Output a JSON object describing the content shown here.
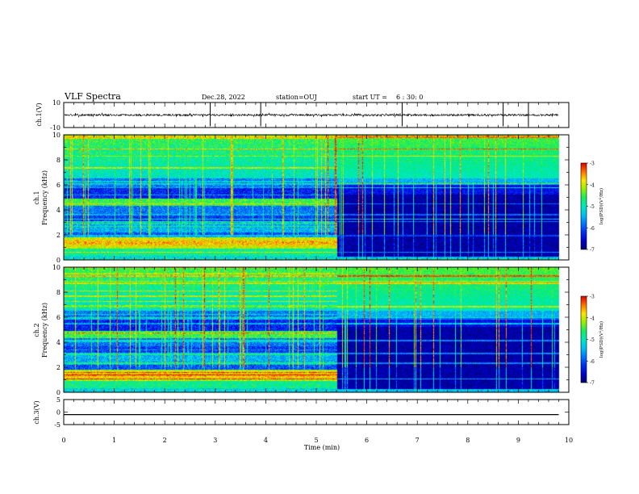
{
  "header": {
    "title": "VLF Spectra",
    "date": "Dec.28, 2022",
    "station": "station=OUJ",
    "start_label": "start  UT =",
    "start_time": "6 : 30: 0"
  },
  "chart_data": [
    {
      "type": "line",
      "panel": "ch1-waveform",
      "ylabel": "ch.1(V)",
      "ylim": [
        -10,
        10
      ],
      "yticks": [
        "10",
        "-10"
      ],
      "series": [
        {
          "values_description_free": true,
          "baseline": 0,
          "noise_amplitude": 1,
          "impulses_at_min": [
            2.9,
            3.9,
            6.7,
            8.7,
            9.2
          ]
        }
      ]
    },
    {
      "type": "heatmap",
      "panel": "ch1-spectrogram",
      "ylabel": "ch.1\nFrequency (kHz)",
      "ylabel_line1": "ch.1",
      "ylabel_line2": "Frequency (kHz)",
      "ylim": [
        0,
        10
      ],
      "yticks": [
        "0",
        "2",
        "4",
        "6",
        "8",
        "10"
      ],
      "xlim": [
        0,
        10
      ],
      "regime_change_min": 5.4,
      "colorbar": {
        "label": "log(PSD)(V²/Hz)",
        "range": [
          -7,
          -3
        ],
        "ticks": [
          "-3",
          "-4",
          "-5",
          "-6",
          "-7"
        ]
      }
    },
    {
      "type": "heatmap",
      "panel": "ch2-spectrogram",
      "ylabel_line1": "ch.2",
      "ylabel_line2": "Frequency (kHz)",
      "ylim": [
        0,
        10
      ],
      "yticks": [
        "0",
        "2",
        "4",
        "6",
        "8",
        "10"
      ],
      "xlim": [
        0,
        10
      ],
      "regime_change_min": 5.4,
      "colorbar": {
        "label": "log(PSD)(V²/Hz)",
        "range": [
          -7,
          -3
        ],
        "ticks": [
          "-3",
          "-4",
          "-5",
          "-6",
          "-7"
        ]
      }
    },
    {
      "type": "line",
      "panel": "ch3-waveform",
      "ylabel": "ch.3(V)",
      "ylim": [
        -5,
        5
      ],
      "yticks": [
        "5",
        "0",
        "-5"
      ],
      "series": [
        {
          "values": [
            -1,
            -1
          ],
          "x": [
            0,
            9.8
          ]
        }
      ]
    }
  ],
  "xaxis": {
    "label": "Time (min)",
    "ticks": [
      "0",
      "1",
      "2",
      "3",
      "4",
      "5",
      "6",
      "7",
      "8",
      "9",
      "10"
    ],
    "xlim": [
      0,
      10
    ],
    "data_end_min": 9.8
  },
  "colorbar_label": "log(PSD)(V",
  "colorbar_label_sup": "2",
  "colorbar_label_tail": "/Hz)"
}
